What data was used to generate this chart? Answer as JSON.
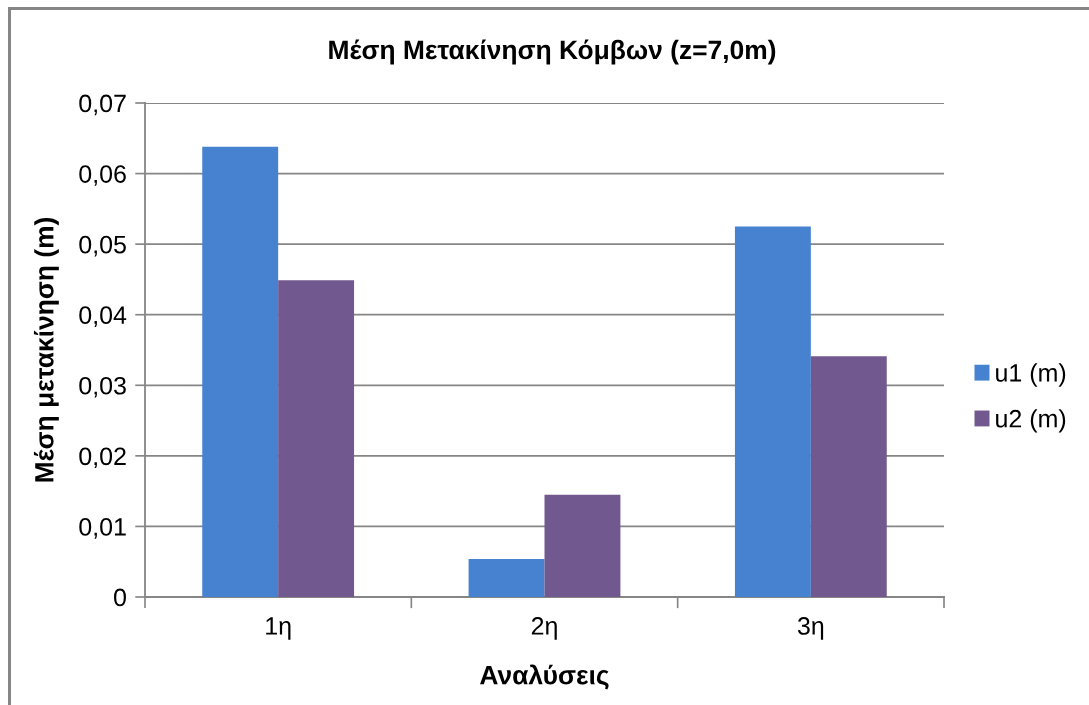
{
  "chart_data": {
    "type": "bar",
    "title": "Μέση Μετακίνηση Κόμβων (z=7,0m)",
    "xlabel": "Αναλύσεις",
    "ylabel": "Μέση μετακίνηση (m)",
    "categories": [
      "1η",
      "2η",
      "3η"
    ],
    "series": [
      {
        "name": "u1 (m)",
        "color": "#4682d0",
        "values": [
          0.0638,
          0.0054,
          0.0525
        ]
      },
      {
        "name": "u2 (m)",
        "color": "#71588f",
        "values": [
          0.0449,
          0.0145,
          0.0341
        ]
      }
    ],
    "ylim": [
      0,
      0.07
    ],
    "yticks": [
      0,
      {
        "value": 0.01,
        "label": "0,01"
      },
      {
        "value": 0.02,
        "label": "0,02"
      },
      {
        "value": 0.03,
        "label": "0,03"
      },
      {
        "value": 0.04,
        "label": "0,04"
      },
      {
        "value": 0.05,
        "label": "0,05"
      },
      {
        "value": 0.06,
        "label": "0,06"
      },
      {
        "value": 0.07,
        "label": "0,07"
      }
    ],
    "grid": "y",
    "legend": "right"
  }
}
